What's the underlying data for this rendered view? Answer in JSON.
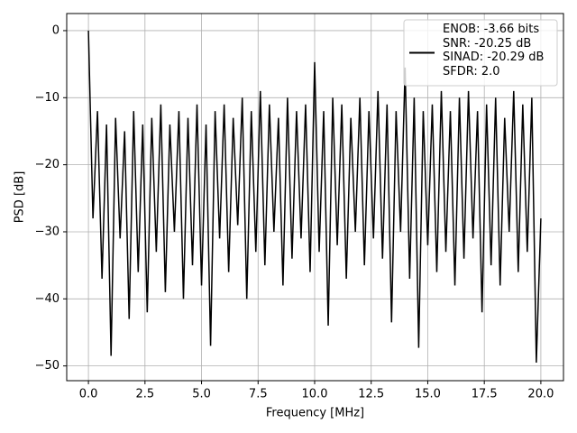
{
  "chart_data": {
    "type": "line",
    "xlabel": "Frequency [MHz]",
    "ylabel": "PSD [dB]",
    "x": [
      0,
      0.2,
      0.4,
      0.6,
      0.8,
      1.0,
      1.2,
      1.4,
      1.6,
      1.8,
      2.0,
      2.2,
      2.4,
      2.6,
      2.8,
      3.0,
      3.2,
      3.4,
      3.6,
      3.8,
      4.0,
      4.2,
      4.4,
      4.6,
      4.8,
      5.0,
      5.2,
      5.4,
      5.6,
      5.8,
      6.0,
      6.2,
      6.4,
      6.6,
      6.8,
      7.0,
      7.2,
      7.4,
      7.6,
      7.8,
      8.0,
      8.2,
      8.4,
      8.6,
      8.8,
      9.0,
      9.2,
      9.4,
      9.6,
      9.8,
      10.0,
      10.2,
      10.4,
      10.6,
      10.8,
      11.0,
      11.2,
      11.4,
      11.6,
      11.8,
      12.0,
      12.2,
      12.4,
      12.6,
      12.8,
      13.0,
      13.2,
      13.4,
      13.6,
      13.8,
      14.0,
      14.2,
      14.4,
      14.6,
      14.8,
      15.0,
      15.2,
      15.4,
      15.6,
      15.8,
      16.0,
      16.2,
      16.4,
      16.6,
      16.8,
      17.0,
      17.2,
      17.4,
      17.6,
      17.8,
      18.0,
      18.2,
      18.4,
      18.6,
      18.8,
      19.0,
      19.2,
      19.4,
      19.6,
      19.8,
      20.0
    ],
    "series": [
      {
        "name": "ENOB: -3.66 bits\nSNR: -20.25 dB\nSINAD: -20.29 dB\nSFDR: 2.0",
        "color": "#000000",
        "values": [
          0,
          -28,
          -12,
          -37,
          -14,
          -48.5,
          -13,
          -31,
          -15,
          -43,
          -12,
          -36,
          -14,
          -42,
          -13,
          -33,
          -11,
          -39,
          -14,
          -30,
          -12,
          -40,
          -13,
          -35,
          -11,
          -38,
          -14,
          -47,
          -12,
          -31,
          -11,
          -36,
          -13,
          -29,
          -10,
          -40,
          -12,
          -33,
          -9,
          -35,
          -11,
          -30,
          -13,
          -38,
          -10,
          -34,
          -12,
          -31,
          -11,
          -36,
          -4.7,
          -33,
          -12,
          -44,
          -10,
          -32,
          -11,
          -37,
          -13,
          -30,
          -10,
          -35,
          -12,
          -31,
          -9,
          -34,
          -11,
          -43.5,
          -12,
          -30,
          -5.5,
          -37,
          -10,
          -47.3,
          -12,
          -32,
          -11,
          -36,
          -9,
          -33,
          -12,
          -38,
          -10,
          -34,
          -9,
          -31,
          -12,
          -42,
          -11,
          -35,
          -10,
          -38,
          -13,
          -30,
          -9,
          -36,
          -11,
          -33,
          -10,
          -49.5,
          -28
        ]
      }
    ],
    "xlim": [
      -0.96,
      21.0
    ],
    "ylim": [
      -52.2,
      2.55
    ],
    "xticks": [
      {
        "value": 0,
        "label": "0.0"
      },
      2.5,
      {
        "value": 5,
        "label": "5.0"
      },
      7.5,
      {
        "value": 10,
        "label": "10.0"
      },
      12.5,
      {
        "value": 15,
        "label": "15.0"
      },
      17.5,
      {
        "value": 20,
        "label": "20.0"
      }
    ],
    "yticks": [
      0,
      {
        "value": -10,
        "label": "−10"
      },
      {
        "value": -20,
        "label": "−20"
      },
      {
        "value": -30,
        "label": "−30"
      },
      {
        "value": -40,
        "label": "−40"
      },
      {
        "value": -50,
        "label": "−50"
      }
    ],
    "grid": true,
    "legend": "upper right"
  }
}
